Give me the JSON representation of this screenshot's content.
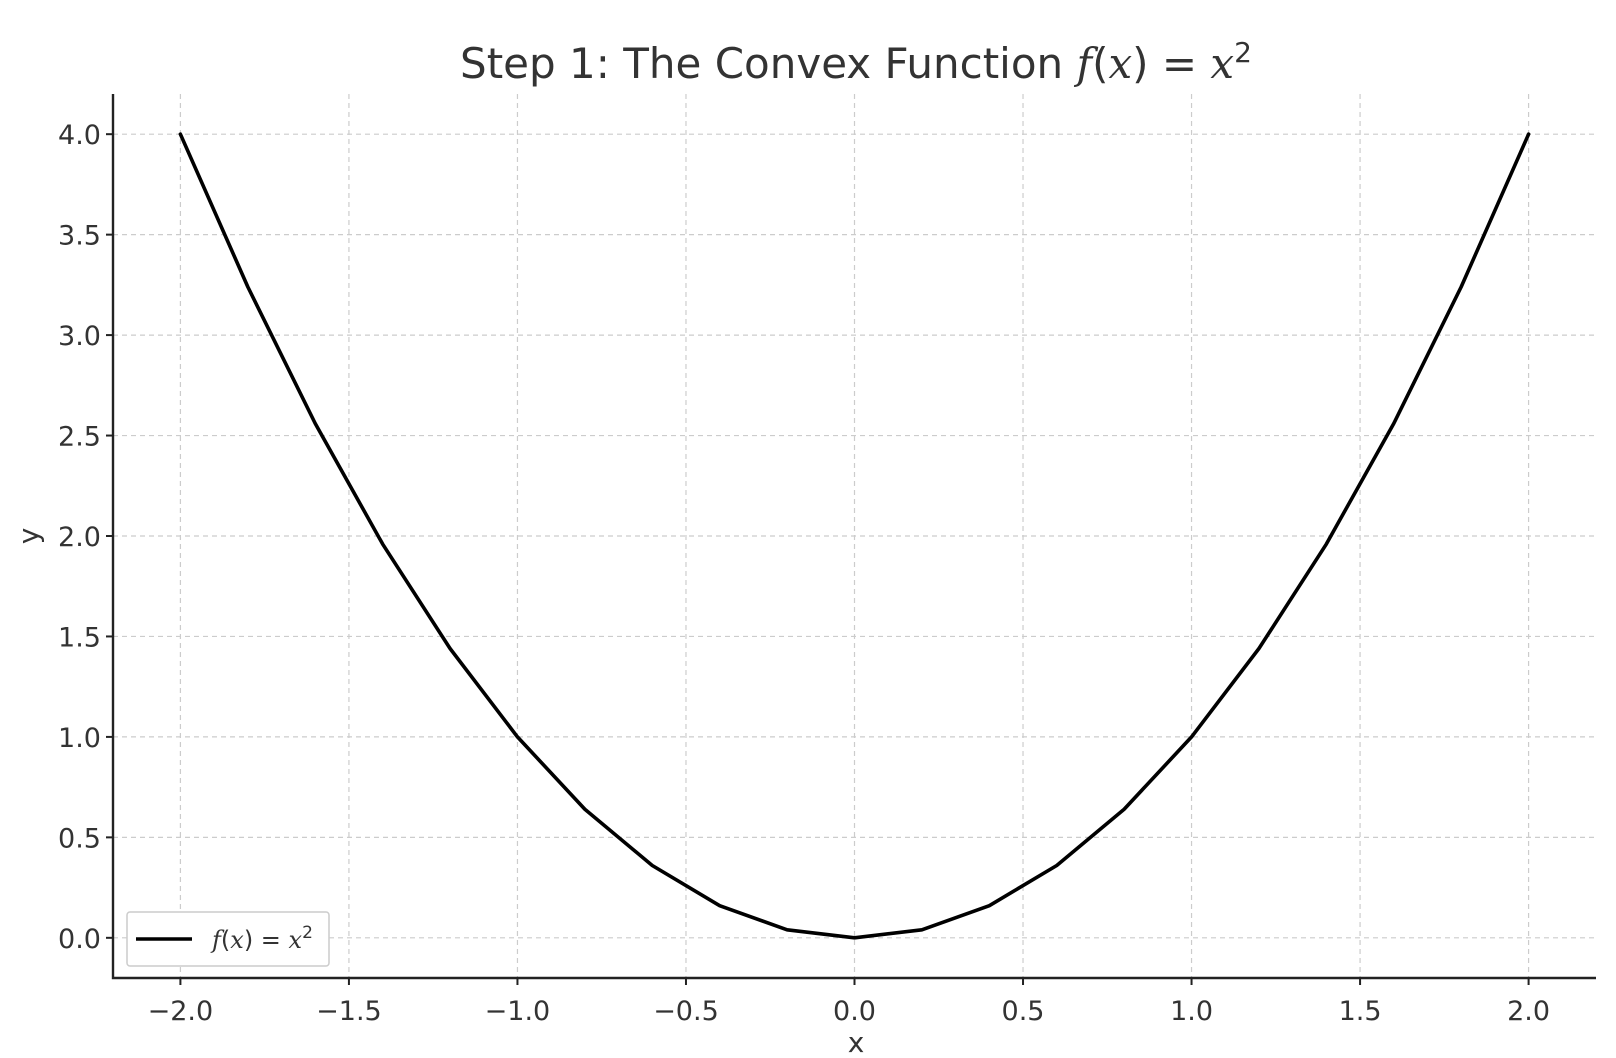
{
  "chart_data": {
    "type": "line",
    "title_prefix": "Step 1: The Convex Function ",
    "title_math": {
      "fn": "f",
      "arg": "x",
      "base": "x",
      "exp": "2"
    },
    "xlabel": "x",
    "ylabel": "y",
    "xlim": [
      -2.2,
      2.2
    ],
    "ylim": [
      -0.2,
      4.2
    ],
    "xticks": [
      -2.0,
      -1.5,
      -1.0,
      -0.5,
      0.0,
      0.5,
      1.0,
      1.5,
      2.0
    ],
    "yticks": [
      0.0,
      0.5,
      1.0,
      1.5,
      2.0,
      2.5,
      3.0,
      3.5,
      4.0
    ],
    "xtick_labels": [
      "−2.0",
      "−1.5",
      "−1.0",
      "−0.5",
      "0.0",
      "0.5",
      "1.0",
      "1.5",
      "2.0"
    ],
    "ytick_labels": [
      "0.0",
      "0.5",
      "1.0",
      "1.5",
      "2.0",
      "2.5",
      "3.0",
      "3.5",
      "4.0"
    ],
    "grid": true,
    "legend_placement": "lower-left",
    "series": [
      {
        "name": "f(x) = x²",
        "color": "#000000",
        "x": [
          -2.0,
          -1.8,
          -1.6,
          -1.4,
          -1.2,
          -1.0,
          -0.8,
          -0.6,
          -0.4,
          -0.2,
          0.0,
          0.2,
          0.4,
          0.6,
          0.8,
          1.0,
          1.2,
          1.4,
          1.6,
          1.8,
          2.0
        ],
        "y": [
          4.0,
          3.24,
          2.56,
          1.96,
          1.44,
          1.0,
          0.64,
          0.36,
          0.16,
          0.04,
          0.0,
          0.04,
          0.16,
          0.36,
          0.64,
          1.0,
          1.44,
          1.96,
          2.56,
          3.24,
          4.0
        ]
      }
    ]
  }
}
